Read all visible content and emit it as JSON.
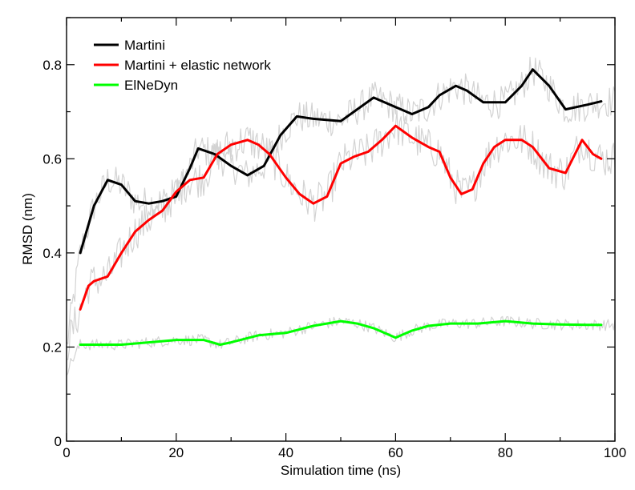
{
  "chart_data": {
    "type": "line",
    "title": "",
    "xlabel": "Simulation time (ns)",
    "ylabel": "RMSD (nm)",
    "xlim": [
      0,
      100
    ],
    "ylim": [
      0,
      0.9
    ],
    "xticks": [
      0,
      20,
      40,
      60,
      80,
      100
    ],
    "xtick_labels": [
      "0",
      "20",
      "40",
      "60",
      "80",
      "100"
    ],
    "yticks": [
      0,
      0.2,
      0.4,
      0.6,
      0.8
    ],
    "ytick_labels": [
      "0",
      "0.2",
      "0.4",
      "0.6",
      "0.8"
    ],
    "grid": false,
    "legend_position": "top-left",
    "raw_color": "#d3d3d3",
    "series": [
      {
        "name": "Martini",
        "color": "#000000",
        "x": [
          2.5,
          5,
          7.5,
          10,
          12.5,
          15,
          17.5,
          20,
          22.5,
          24,
          27,
          30,
          33,
          36,
          39,
          42,
          45,
          50,
          53,
          56,
          60,
          63,
          66,
          68,
          71,
          73,
          76,
          80,
          83,
          85,
          88,
          91,
          95,
          97.5
        ],
        "y": [
          0.4,
          0.5,
          0.555,
          0.545,
          0.51,
          0.505,
          0.51,
          0.52,
          0.58,
          0.622,
          0.61,
          0.585,
          0.565,
          0.585,
          0.65,
          0.69,
          0.685,
          0.68,
          0.705,
          0.73,
          0.71,
          0.695,
          0.71,
          0.735,
          0.755,
          0.745,
          0.72,
          0.72,
          0.755,
          0.79,
          0.755,
          0.705,
          0.715,
          0.722
        ]
      },
      {
        "name": "Martini + elastic network",
        "color": "#ff0000",
        "x": [
          2.5,
          4,
          5,
          7.5,
          10,
          12.5,
          15,
          17.5,
          20,
          22.5,
          25,
          27.5,
          30,
          33,
          35,
          37,
          40,
          42.5,
          45,
          47.5,
          50,
          52.5,
          55,
          57.5,
          60,
          63,
          66,
          68,
          70,
          72,
          74,
          76,
          78,
          80,
          83,
          85,
          88,
          91,
          94,
          96,
          97.5
        ],
        "y": [
          0.28,
          0.33,
          0.34,
          0.35,
          0.4,
          0.445,
          0.47,
          0.49,
          0.53,
          0.555,
          0.56,
          0.61,
          0.63,
          0.64,
          0.63,
          0.61,
          0.56,
          0.525,
          0.505,
          0.52,
          0.59,
          0.605,
          0.615,
          0.64,
          0.67,
          0.645,
          0.625,
          0.615,
          0.56,
          0.525,
          0.535,
          0.59,
          0.625,
          0.64,
          0.64,
          0.625,
          0.58,
          0.57,
          0.64,
          0.61,
          0.6
        ]
      },
      {
        "name": "ElNeDyn",
        "color": "#00ff00",
        "x": [
          2.5,
          5,
          10,
          15,
          20,
          25,
          28,
          30,
          35,
          40,
          45,
          50,
          53,
          56,
          60,
          63,
          66,
          70,
          75,
          80,
          85,
          90,
          95,
          97.5
        ],
        "y": [
          0.205,
          0.205,
          0.205,
          0.21,
          0.215,
          0.215,
          0.205,
          0.21,
          0.225,
          0.23,
          0.245,
          0.255,
          0.25,
          0.24,
          0.22,
          0.235,
          0.245,
          0.25,
          0.25,
          0.255,
          0.25,
          0.248,
          0.247,
          0.247
        ]
      }
    ]
  }
}
